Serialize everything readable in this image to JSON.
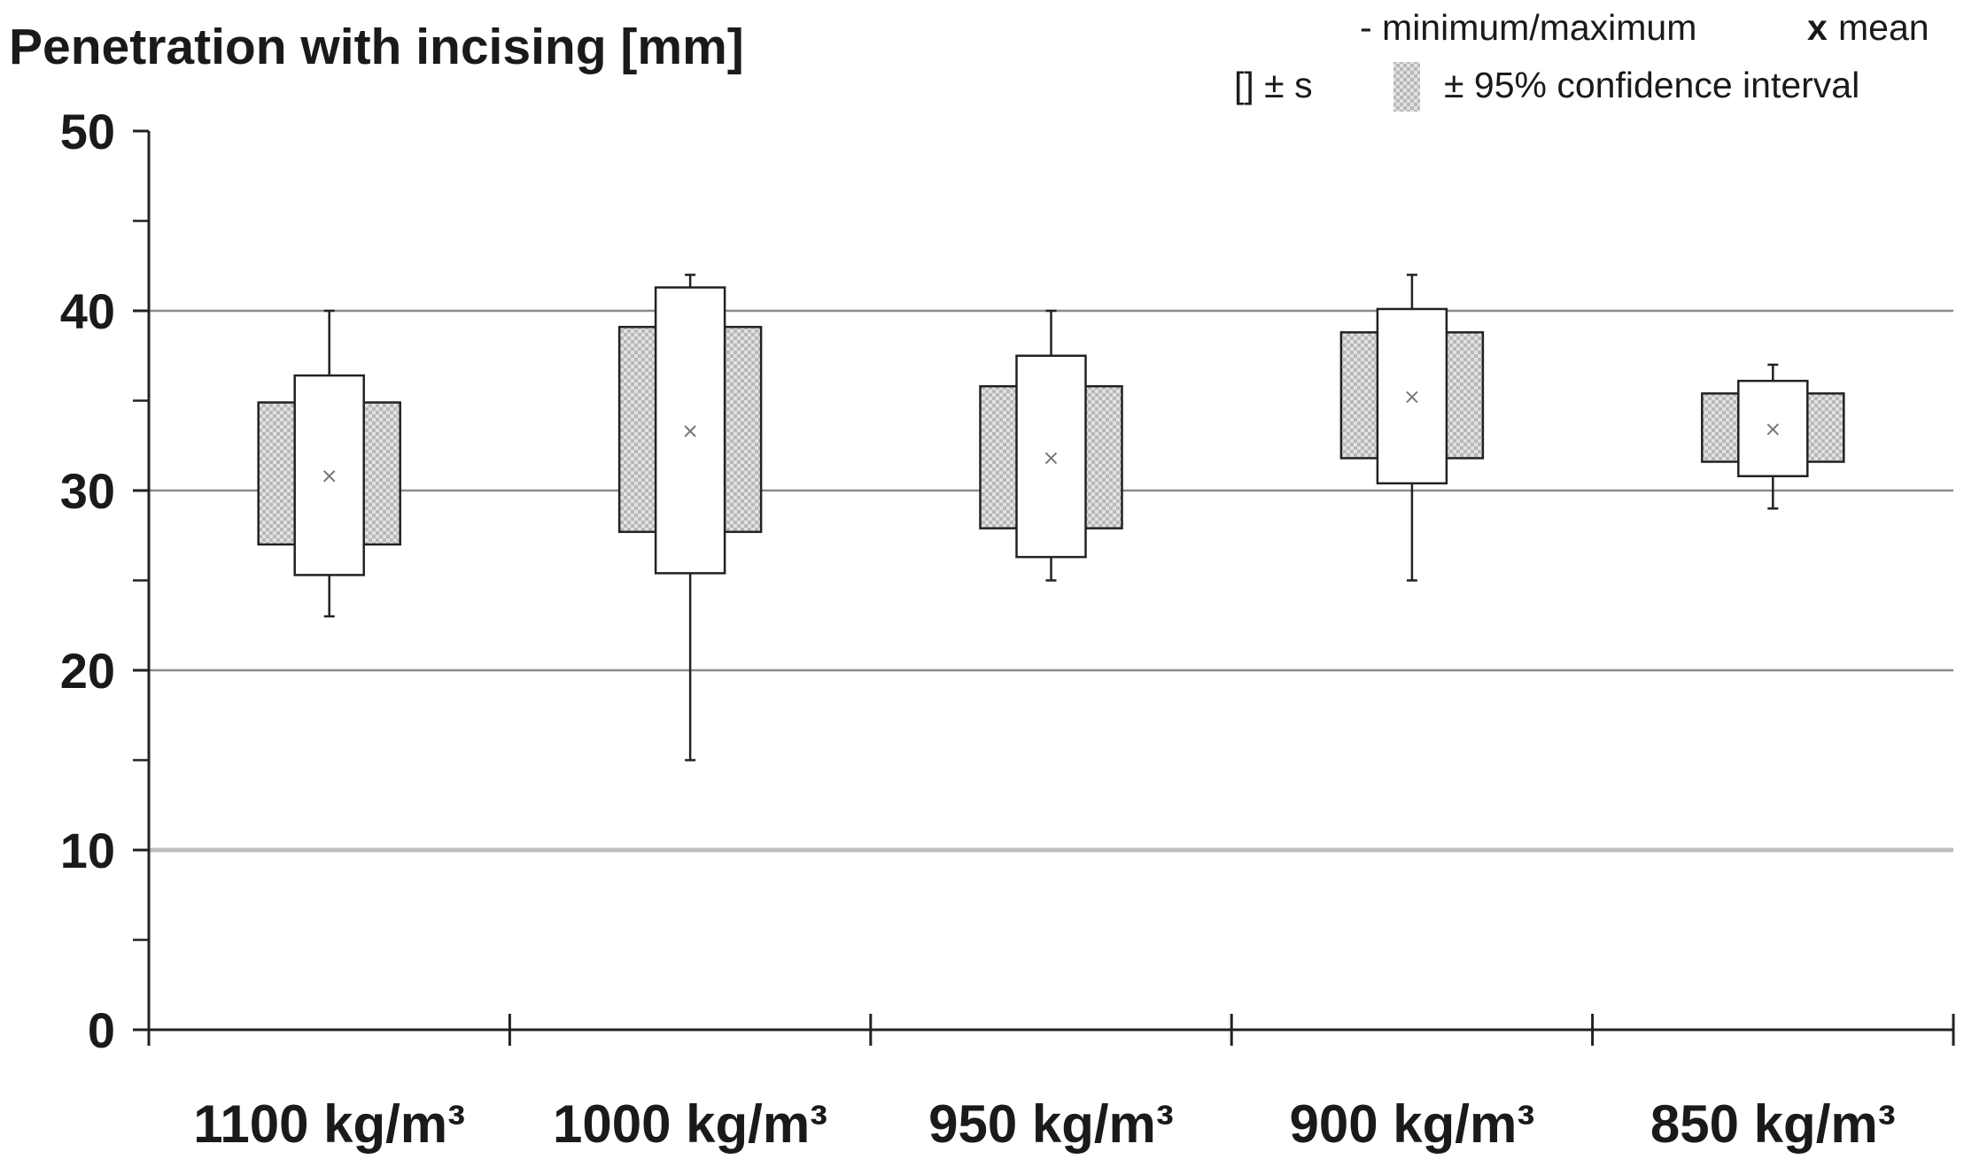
{
  "chart_data": {
    "type": "box",
    "title": "Penetration with incising [mm]",
    "xlabel": "",
    "ylabel": "",
    "ylim": [
      0,
      50
    ],
    "yticks": [
      0,
      10,
      20,
      30,
      40,
      50
    ],
    "grid": "horizontal",
    "legend_position": "top-right",
    "legend": {
      "minmax": "- minimum/maximum",
      "mean_symbol": "x",
      "mean_label": "mean",
      "sd_label": "[] ± s",
      "ci_label": "± 95% confidence interval"
    },
    "categories": [
      "1100 kg/m³",
      "1000 kg/m³",
      "950 kg/m³",
      "900 kg/m³",
      "850 kg/m³"
    ],
    "series": [
      {
        "category": "1100 kg/m³",
        "min": 23,
        "max": 40,
        "mean": 30.8,
        "sd_low": 25.3,
        "sd_high": 36.4,
        "ci_low": 27.0,
        "ci_high": 34.9
      },
      {
        "category": "1000 kg/m³",
        "min": 15,
        "max": 42,
        "mean": 33.3,
        "sd_low": 25.4,
        "sd_high": 41.3,
        "ci_low": 27.7,
        "ci_high": 39.1
      },
      {
        "category": "950 kg/m³",
        "min": 25,
        "max": 40,
        "mean": 31.8,
        "sd_low": 26.3,
        "sd_high": 37.5,
        "ci_low": 27.9,
        "ci_high": 35.8
      },
      {
        "category": "900 kg/m³",
        "min": 25,
        "max": 42,
        "mean": 35.2,
        "sd_low": 30.4,
        "sd_high": 40.1,
        "ci_low": 31.8,
        "ci_high": 38.8
      },
      {
        "category": "850 kg/m³",
        "min": 29,
        "max": 37,
        "mean": 33.4,
        "sd_low": 30.8,
        "sd_high": 36.1,
        "ci_low": 31.6,
        "ci_high": 35.4
      }
    ],
    "colors": {
      "grid": "#8a8a8a",
      "axis": "#222222",
      "box_stroke": "#222222",
      "ci_fill": "#c8c8c8",
      "mean": "#777777"
    }
  }
}
